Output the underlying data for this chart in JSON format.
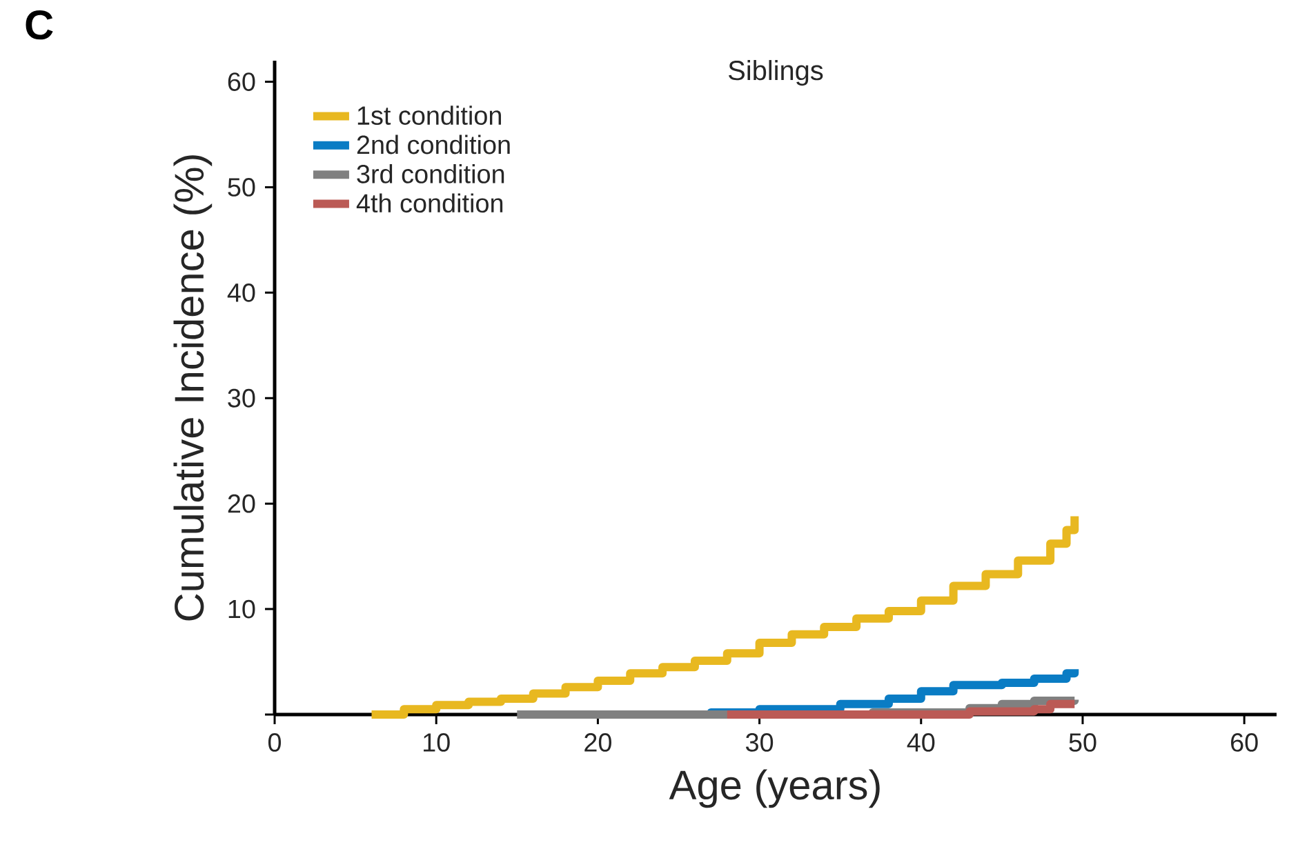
{
  "chart_data": {
    "type": "step",
    "title": "Siblings",
    "xlabel": "Age (years)",
    "ylabel": "Cumulative Incidence (%)",
    "annotations": [
      "C"
    ],
    "xlim": [
      0,
      62
    ],
    "ylim": [
      0,
      62
    ],
    "xticks": [
      0,
      10,
      20,
      30,
      40,
      50,
      60
    ],
    "yticks": [
      {
        "value": 0,
        "label": null
      },
      10,
      20,
      30,
      40,
      50,
      60
    ],
    "legend": "top left",
    "grid": false,
    "series": [
      {
        "name": "1st condition",
        "color": "#e8b820",
        "x": [
          6,
          8,
          10,
          12,
          14,
          16,
          18,
          20,
          22,
          24,
          26,
          28,
          30,
          32,
          34,
          36,
          38,
          40,
          42,
          44,
          46,
          48,
          49,
          49.5
        ],
        "values": [
          0,
          0.5,
          0.9,
          1.2,
          1.5,
          2.0,
          2.6,
          3.2,
          3.9,
          4.5,
          5.1,
          5.8,
          6.8,
          7.6,
          8.3,
          9.1,
          9.8,
          10.8,
          12.2,
          13.3,
          14.6,
          16.2,
          17.5,
          18.8
        ]
      },
      {
        "name": "2nd condition",
        "color": "#0a7cc4",
        "x": [
          20,
          27,
          30,
          35,
          38,
          40,
          42,
          45,
          47,
          49,
          49.5
        ],
        "values": [
          0,
          0.2,
          0.5,
          1.0,
          1.5,
          2.2,
          2.8,
          3.0,
          3.4,
          3.9,
          4.3
        ]
      },
      {
        "name": "3rd condition",
        "color": "#808080",
        "x": [
          15,
          37,
          43,
          45,
          47,
          49.5
        ],
        "values": [
          0,
          0.2,
          0.6,
          1.0,
          1.3,
          1.4
        ]
      },
      {
        "name": "4th condition",
        "color": "#bb5a55",
        "x": [
          28,
          43,
          47,
          48,
          49.5
        ],
        "values": [
          0,
          0.3,
          0.5,
          1.0,
          1.0
        ]
      }
    ]
  }
}
